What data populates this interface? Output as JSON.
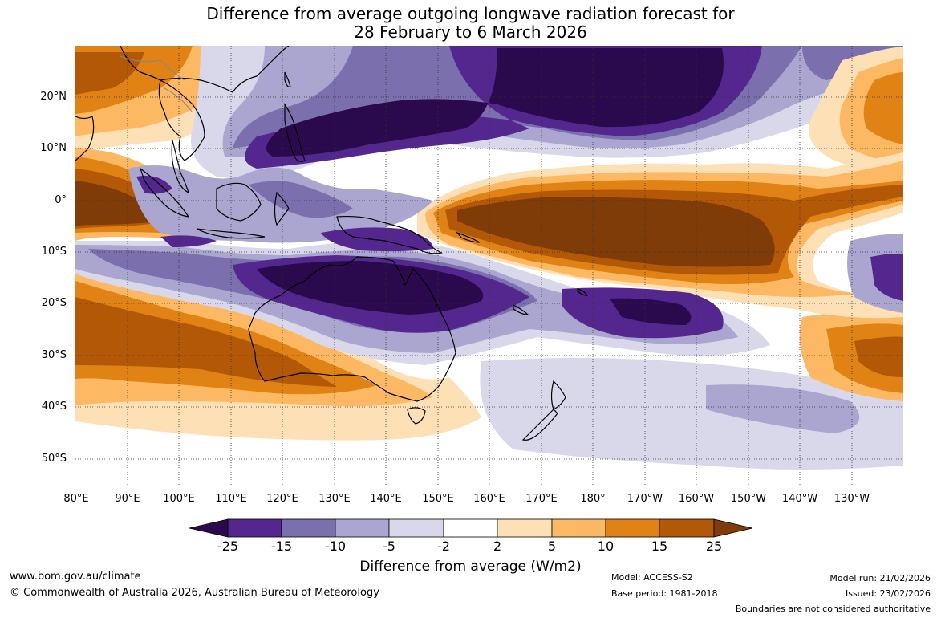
{
  "title": {
    "line1": "Difference from average outgoing longwave radiation forecast for",
    "line2": "28 February to 6 March 2026"
  },
  "map": {
    "lat_labels": [
      "20°N",
      "10°N",
      "0°",
      "10°S",
      "20°S",
      "30°S",
      "40°S",
      "50°S"
    ],
    "lon_labels": [
      "80°E",
      "90°E",
      "100°E",
      "110°E",
      "120°E",
      "130°E",
      "140°E",
      "150°E",
      "160°E",
      "170°E",
      "180°",
      "170°W",
      "160°W",
      "150°W",
      "140°W",
      "130°W"
    ]
  },
  "legend": {
    "label": "Difference from average (W/m2)",
    "ticks": [
      "-25",
      "-15",
      "-10",
      "-5",
      "-2",
      "2",
      "5",
      "10",
      "15",
      "25"
    ],
    "colors": {
      "lt_neg25": "#2a0a4d",
      "neg25_neg15": "#54278f",
      "neg15_neg10": "#7b6fae",
      "neg10_neg5": "#aba6cf",
      "neg5_neg2": "#d9d8ea",
      "neg2_2": "#ffffff",
      "p2_5": "#fee0b6",
      "p5_10": "#fdb863",
      "p10_15": "#e08214",
      "p15_25": "#b35806",
      "gt_25": "#7f3b08"
    }
  },
  "footer": {
    "website": "www.bom.gov.au/climate",
    "copyright": "© Commonwealth of Australia 2026, Australian Bureau of Meteorology",
    "model": "Model: ACCESS-S2",
    "base_period": "Base period: 1981-2018",
    "model_run": "Model run: 21/02/2026",
    "issued": "Issued: 23/02/2026",
    "disclaimer": "Boundaries are not considered authoritative"
  }
}
